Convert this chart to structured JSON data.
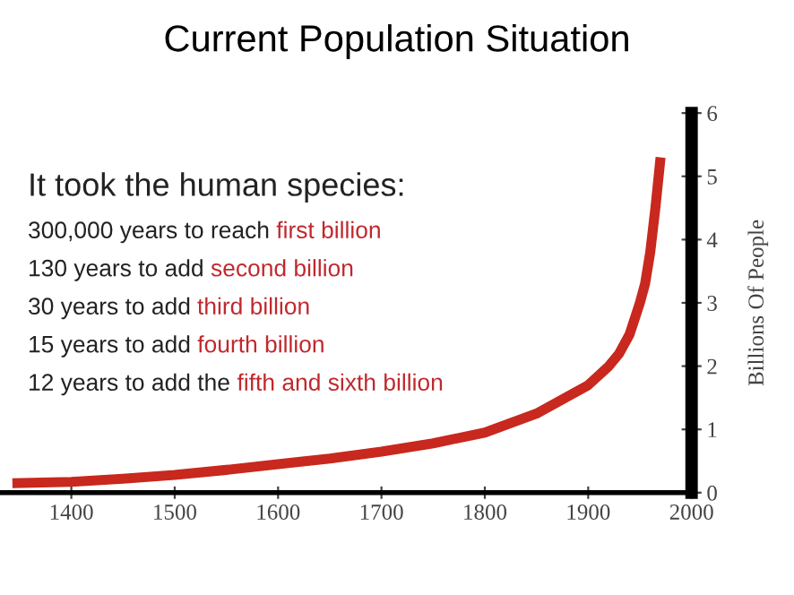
{
  "chart_data": {
    "type": "line",
    "title": "Current Population Situation",
    "ylabel": "Billions Of People",
    "x": [
      1343,
      1400,
      1450,
      1500,
      1550,
      1600,
      1650,
      1700,
      1750,
      1800,
      1850,
      1900,
      1920,
      1930,
      1940,
      1950,
      1955,
      1960,
      1965,
      1970
    ],
    "series": [
      {
        "color": "#c8281e",
        "values": [
          0.15,
          0.17,
          0.22,
          0.28,
          0.36,
          0.45,
          0.54,
          0.65,
          0.78,
          0.95,
          1.25,
          1.7,
          2.0,
          2.2,
          2.5,
          3.0,
          3.3,
          3.8,
          4.5,
          5.3
        ]
      }
    ],
    "xlim": [
      1331,
      2000
    ],
    "ylim": [
      0,
      6
    ],
    "xticks": [
      1400,
      1500,
      1600,
      1700,
      1800,
      1900,
      2000
    ],
    "yticks": [
      0,
      1,
      2,
      3,
      4,
      5,
      6
    ],
    "grid": false,
    "legend": false,
    "marker": "none",
    "line_style": "solid",
    "annotations": [
      "It took the human species:",
      "300,000 years to reach ",
      "first billion",
      "130 years to add ",
      "second billion",
      "30 years to add ",
      "third billion",
      "15 years to add ",
      "fourth billion",
      "12 years to add the ",
      "fifth and sixth billion"
    ]
  }
}
